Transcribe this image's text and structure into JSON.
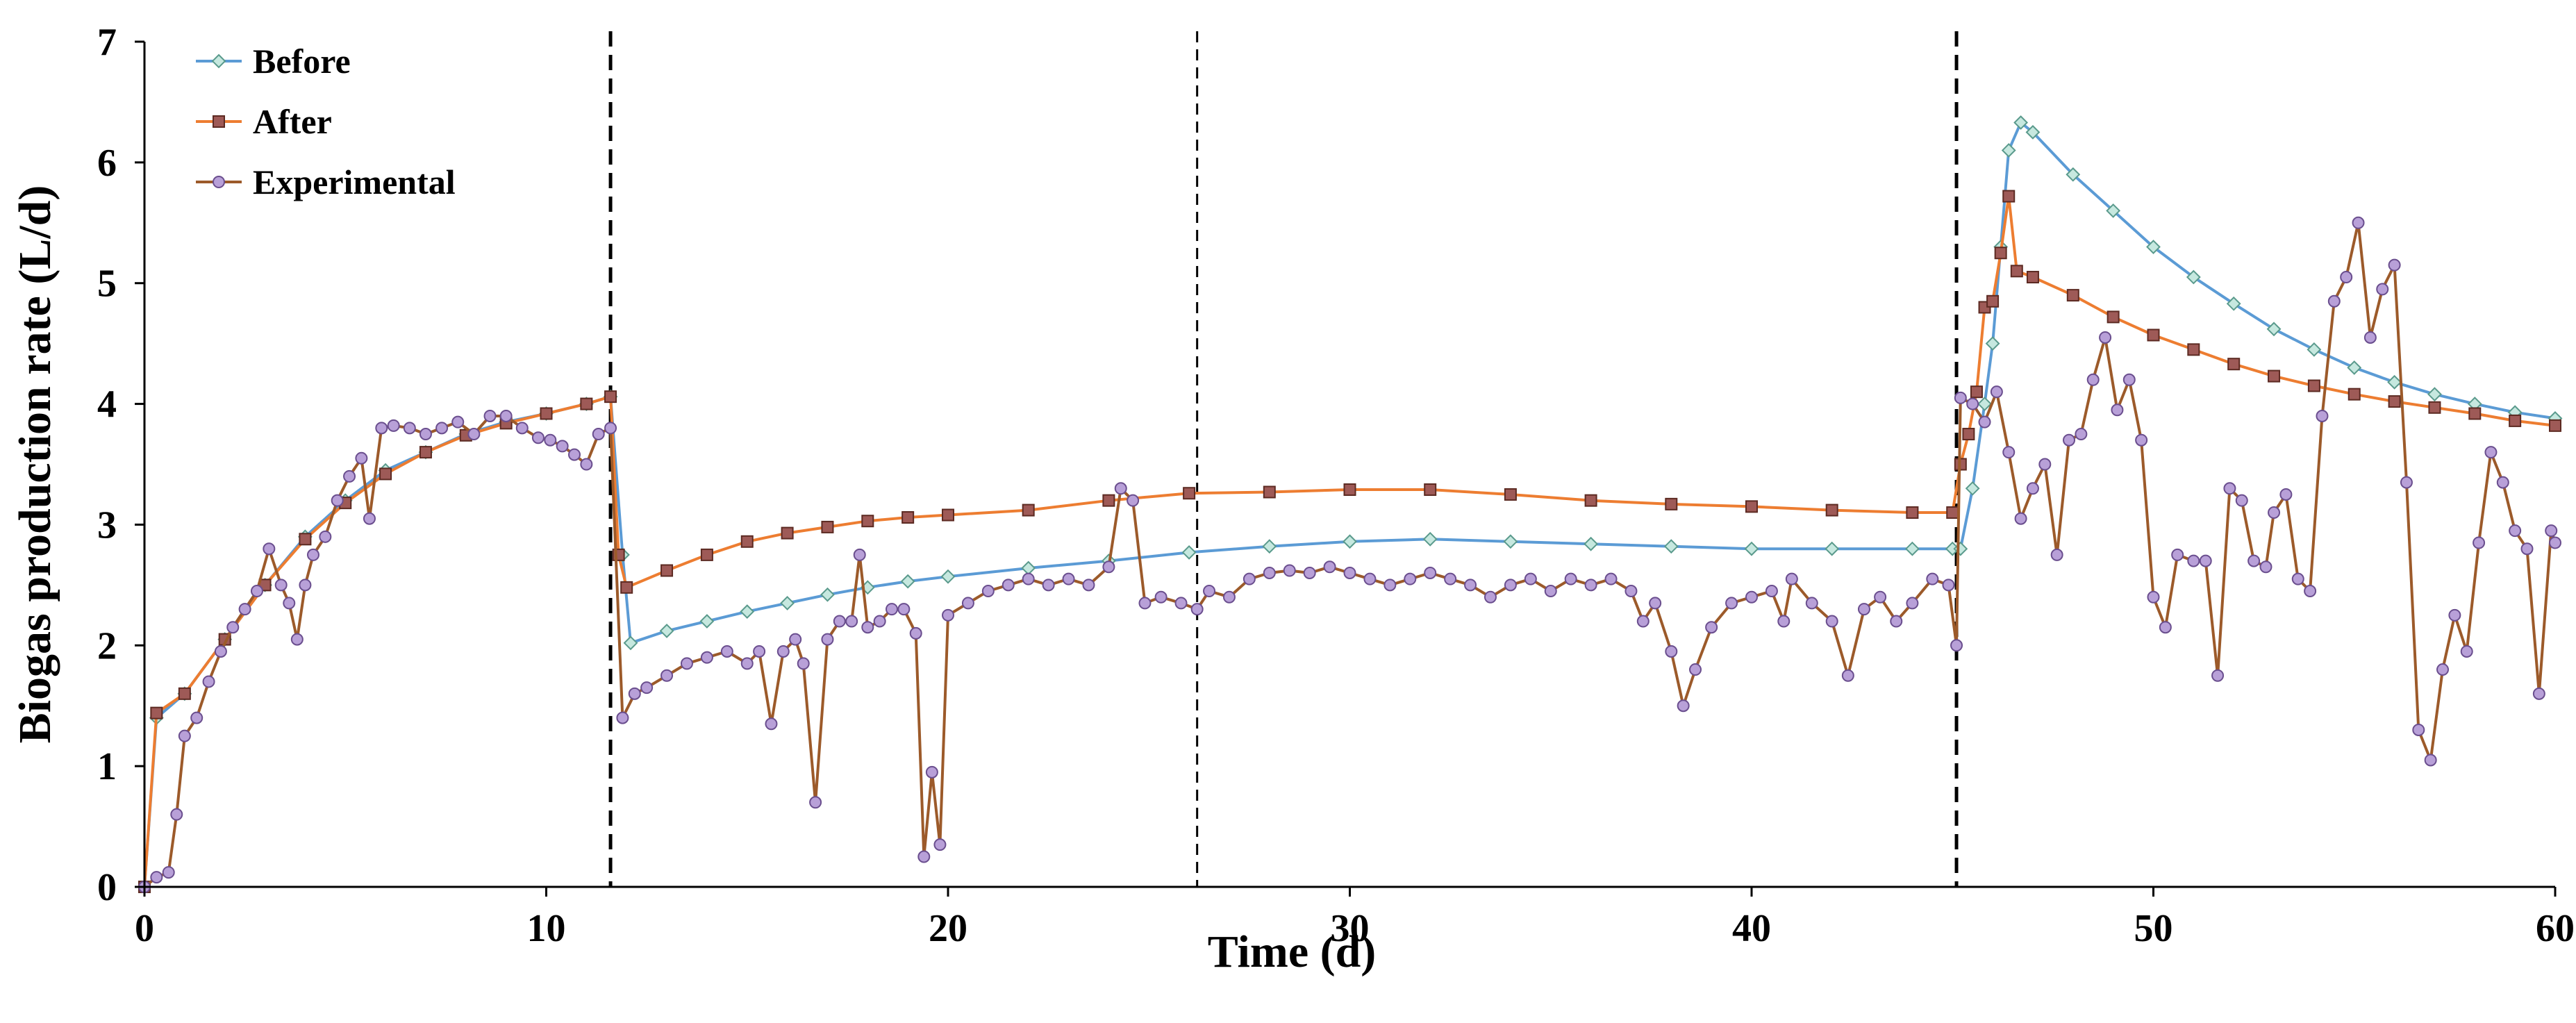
{
  "chart_data": {
    "type": "line",
    "title": "",
    "xlabel": "Time (d)",
    "ylabel": "Biogas production rate (L/d)",
    "xlim": [
      0,
      60
    ],
    "ylim": [
      0,
      7
    ],
    "xticks": [
      "0",
      "10",
      "20",
      "30",
      "40",
      "50",
      "60"
    ],
    "yticks": [
      "0",
      "1",
      "2",
      "3",
      "4",
      "5",
      "6",
      "7"
    ],
    "grid": false,
    "legend_position": "top-left",
    "vertical_reference_lines": [
      {
        "x": 11.6,
        "style": "bold-dashed"
      },
      {
        "x": 26.2,
        "style": "dashed"
      },
      {
        "x": 45.1,
        "style": "bold-dashed"
      }
    ],
    "series": [
      {
        "name": "Before",
        "line_color": "#5b9bd5",
        "marker": "diamond",
        "marker_fill": "#c6e8df",
        "marker_stroke": "#5a9a8c",
        "points": [
          [
            0,
            0
          ],
          [
            0.3,
            1.4
          ],
          [
            1,
            1.6
          ],
          [
            2,
            2.05
          ],
          [
            3,
            2.5
          ],
          [
            4,
            2.9
          ],
          [
            5,
            3.2
          ],
          [
            6,
            3.45
          ],
          [
            7,
            3.6
          ],
          [
            8,
            3.75
          ],
          [
            9,
            3.85
          ],
          [
            10,
            3.92
          ],
          [
            11,
            4.0
          ],
          [
            11.6,
            4.06
          ],
          [
            11.9,
            2.75
          ],
          [
            12.1,
            2.02
          ],
          [
            13,
            2.12
          ],
          [
            14,
            2.2
          ],
          [
            15,
            2.28
          ],
          [
            16,
            2.35
          ],
          [
            17,
            2.42
          ],
          [
            18,
            2.48
          ],
          [
            19,
            2.53
          ],
          [
            20,
            2.57
          ],
          [
            22,
            2.64
          ],
          [
            24,
            2.7
          ],
          [
            26,
            2.77
          ],
          [
            28,
            2.82
          ],
          [
            30,
            2.86
          ],
          [
            32,
            2.88
          ],
          [
            34,
            2.86
          ],
          [
            36,
            2.84
          ],
          [
            38,
            2.82
          ],
          [
            40,
            2.8
          ],
          [
            42,
            2.8
          ],
          [
            44,
            2.8
          ],
          [
            45,
            2.8
          ],
          [
            45.2,
            2.8
          ],
          [
            45.5,
            3.3
          ],
          [
            45.8,
            4.0
          ],
          [
            46.0,
            4.5
          ],
          [
            46.2,
            5.3
          ],
          [
            46.4,
            6.1
          ],
          [
            46.7,
            6.33
          ],
          [
            47,
            6.25
          ],
          [
            48,
            5.9
          ],
          [
            49,
            5.6
          ],
          [
            50,
            5.3
          ],
          [
            51,
            5.05
          ],
          [
            52,
            4.83
          ],
          [
            53,
            4.62
          ],
          [
            54,
            4.45
          ],
          [
            55,
            4.3
          ],
          [
            56,
            4.18
          ],
          [
            57,
            4.08
          ],
          [
            58,
            4.0
          ],
          [
            59,
            3.93
          ],
          [
            60,
            3.88
          ]
        ]
      },
      {
        "name": "After",
        "line_color": "#ed7d31",
        "marker": "square",
        "marker_fill": "#9e5a57",
        "marker_stroke": "#5c2a22",
        "points": [
          [
            0,
            0
          ],
          [
            0.3,
            1.44
          ],
          [
            1,
            1.6
          ],
          [
            2,
            2.05
          ],
          [
            3,
            2.5
          ],
          [
            4,
            2.88
          ],
          [
            5,
            3.18
          ],
          [
            6,
            3.42
          ],
          [
            7,
            3.6
          ],
          [
            8,
            3.74
          ],
          [
            9,
            3.84
          ],
          [
            10,
            3.92
          ],
          [
            11,
            4.0
          ],
          [
            11.6,
            4.06
          ],
          [
            11.8,
            2.75
          ],
          [
            12.0,
            2.48
          ],
          [
            13,
            2.62
          ],
          [
            14,
            2.75
          ],
          [
            15,
            2.86
          ],
          [
            16,
            2.93
          ],
          [
            17,
            2.98
          ],
          [
            18,
            3.03
          ],
          [
            19,
            3.06
          ],
          [
            20,
            3.08
          ],
          [
            22,
            3.12
          ],
          [
            24,
            3.2
          ],
          [
            26,
            3.26
          ],
          [
            28,
            3.27
          ],
          [
            30,
            3.29
          ],
          [
            32,
            3.29
          ],
          [
            34,
            3.25
          ],
          [
            36,
            3.2
          ],
          [
            38,
            3.17
          ],
          [
            40,
            3.15
          ],
          [
            42,
            3.12
          ],
          [
            44,
            3.1
          ],
          [
            45,
            3.1
          ],
          [
            45.2,
            3.5
          ],
          [
            45.4,
            3.75
          ],
          [
            45.6,
            4.1
          ],
          [
            45.8,
            4.8
          ],
          [
            46.0,
            4.85
          ],
          [
            46.2,
            5.25
          ],
          [
            46.4,
            5.72
          ],
          [
            46.6,
            5.1
          ],
          [
            47,
            5.05
          ],
          [
            48,
            4.9
          ],
          [
            49,
            4.72
          ],
          [
            50,
            4.57
          ],
          [
            51,
            4.45
          ],
          [
            52,
            4.33
          ],
          [
            53,
            4.23
          ],
          [
            54,
            4.15
          ],
          [
            55,
            4.08
          ],
          [
            56,
            4.02
          ],
          [
            57,
            3.97
          ],
          [
            58,
            3.92
          ],
          [
            59,
            3.86
          ],
          [
            60,
            3.82
          ]
        ]
      },
      {
        "name": "Experimental",
        "line_color": "#9c5a2a",
        "marker": "circle",
        "marker_fill": "#b8a0d8",
        "marker_stroke": "#6a4e8e",
        "points": [
          [
            0,
            0
          ],
          [
            0.3,
            0.08
          ],
          [
            0.6,
            0.12
          ],
          [
            0.8,
            0.6
          ],
          [
            1.0,
            1.25
          ],
          [
            1.3,
            1.4
          ],
          [
            1.6,
            1.7
          ],
          [
            1.9,
            1.95
          ],
          [
            2.2,
            2.15
          ],
          [
            2.5,
            2.3
          ],
          [
            2.8,
            2.45
          ],
          [
            3.1,
            2.8
          ],
          [
            3.4,
            2.5
          ],
          [
            3.6,
            2.35
          ],
          [
            3.8,
            2.05
          ],
          [
            4.0,
            2.5
          ],
          [
            4.2,
            2.75
          ],
          [
            4.5,
            2.9
          ],
          [
            4.8,
            3.2
          ],
          [
            5.1,
            3.4
          ],
          [
            5.4,
            3.55
          ],
          [
            5.6,
            3.05
          ],
          [
            5.9,
            3.8
          ],
          [
            6.2,
            3.82
          ],
          [
            6.6,
            3.8
          ],
          [
            7.0,
            3.75
          ],
          [
            7.4,
            3.8
          ],
          [
            7.8,
            3.85
          ],
          [
            8.2,
            3.75
          ],
          [
            8.6,
            3.9
          ],
          [
            9.0,
            3.9
          ],
          [
            9.4,
            3.8
          ],
          [
            9.8,
            3.72
          ],
          [
            10.1,
            3.7
          ],
          [
            10.4,
            3.65
          ],
          [
            10.7,
            3.58
          ],
          [
            11.0,
            3.5
          ],
          [
            11.3,
            3.75
          ],
          [
            11.6,
            3.8
          ],
          [
            11.9,
            1.4
          ],
          [
            12.2,
            1.6
          ],
          [
            12.5,
            1.65
          ],
          [
            13.0,
            1.75
          ],
          [
            13.5,
            1.85
          ],
          [
            14.0,
            1.9
          ],
          [
            14.5,
            1.95
          ],
          [
            15.0,
            1.85
          ],
          [
            15.3,
            1.95
          ],
          [
            15.6,
            1.35
          ],
          [
            15.9,
            1.95
          ],
          [
            16.2,
            2.05
          ],
          [
            16.4,
            1.85
          ],
          [
            16.7,
            0.7
          ],
          [
            17.0,
            2.05
          ],
          [
            17.3,
            2.2
          ],
          [
            17.6,
            2.2
          ],
          [
            17.8,
            2.75
          ],
          [
            18.0,
            2.15
          ],
          [
            18.3,
            2.2
          ],
          [
            18.6,
            2.3
          ],
          [
            18.9,
            2.3
          ],
          [
            19.2,
            2.1
          ],
          [
            19.4,
            0.25
          ],
          [
            19.6,
            0.95
          ],
          [
            19.8,
            0.35
          ],
          [
            20.0,
            2.25
          ],
          [
            20.5,
            2.35
          ],
          [
            21.0,
            2.45
          ],
          [
            21.5,
            2.5
          ],
          [
            22.0,
            2.55
          ],
          [
            22.5,
            2.5
          ],
          [
            23.0,
            2.55
          ],
          [
            23.5,
            2.5
          ],
          [
            24.0,
            2.65
          ],
          [
            24.3,
            3.3
          ],
          [
            24.6,
            3.2
          ],
          [
            24.9,
            2.35
          ],
          [
            25.3,
            2.4
          ],
          [
            25.8,
            2.35
          ],
          [
            26.2,
            2.3
          ],
          [
            26.5,
            2.45
          ],
          [
            27.0,
            2.4
          ],
          [
            27.5,
            2.55
          ],
          [
            28.0,
            2.6
          ],
          [
            28.5,
            2.62
          ],
          [
            29.0,
            2.6
          ],
          [
            29.5,
            2.65
          ],
          [
            30.0,
            2.6
          ],
          [
            30.5,
            2.55
          ],
          [
            31.0,
            2.5
          ],
          [
            31.5,
            2.55
          ],
          [
            32.0,
            2.6
          ],
          [
            32.5,
            2.55
          ],
          [
            33.0,
            2.5
          ],
          [
            33.5,
            2.4
          ],
          [
            34.0,
            2.5
          ],
          [
            34.5,
            2.55
          ],
          [
            35.0,
            2.45
          ],
          [
            35.5,
            2.55
          ],
          [
            36.0,
            2.5
          ],
          [
            36.5,
            2.55
          ],
          [
            37.0,
            2.45
          ],
          [
            37.3,
            2.2
          ],
          [
            37.6,
            2.35
          ],
          [
            38.0,
            1.95
          ],
          [
            38.3,
            1.5
          ],
          [
            38.6,
            1.8
          ],
          [
            39.0,
            2.15
          ],
          [
            39.5,
            2.35
          ],
          [
            40.0,
            2.4
          ],
          [
            40.5,
            2.45
          ],
          [
            40.8,
            2.2
          ],
          [
            41.0,
            2.55
          ],
          [
            41.5,
            2.35
          ],
          [
            42.0,
            2.2
          ],
          [
            42.4,
            1.75
          ],
          [
            42.8,
            2.3
          ],
          [
            43.2,
            2.4
          ],
          [
            43.6,
            2.2
          ],
          [
            44.0,
            2.35
          ],
          [
            44.5,
            2.55
          ],
          [
            44.9,
            2.5
          ],
          [
            45.1,
            2.0
          ],
          [
            45.2,
            4.05
          ],
          [
            45.5,
            4.0
          ],
          [
            45.8,
            3.85
          ],
          [
            46.1,
            4.1
          ],
          [
            46.4,
            3.6
          ],
          [
            46.7,
            3.05
          ],
          [
            47.0,
            3.3
          ],
          [
            47.3,
            3.5
          ],
          [
            47.6,
            2.75
          ],
          [
            47.9,
            3.7
          ],
          [
            48.2,
            3.75
          ],
          [
            48.5,
            4.2
          ],
          [
            48.8,
            4.55
          ],
          [
            49.1,
            3.95
          ],
          [
            49.4,
            4.2
          ],
          [
            49.7,
            3.7
          ],
          [
            50.0,
            2.4
          ],
          [
            50.3,
            2.15
          ],
          [
            50.6,
            2.75
          ],
          [
            51.0,
            2.7
          ],
          [
            51.3,
            2.7
          ],
          [
            51.6,
            1.75
          ],
          [
            51.9,
            3.3
          ],
          [
            52.2,
            3.2
          ],
          [
            52.5,
            2.7
          ],
          [
            52.8,
            2.65
          ],
          [
            53.0,
            3.1
          ],
          [
            53.3,
            3.25
          ],
          [
            53.6,
            2.55
          ],
          [
            53.9,
            2.45
          ],
          [
            54.2,
            3.9
          ],
          [
            54.5,
            4.85
          ],
          [
            54.8,
            5.05
          ],
          [
            55.1,
            5.5
          ],
          [
            55.4,
            4.55
          ],
          [
            55.7,
            4.95
          ],
          [
            56.0,
            5.15
          ],
          [
            56.3,
            3.35
          ],
          [
            56.6,
            1.3
          ],
          [
            56.9,
            1.05
          ],
          [
            57.2,
            1.8
          ],
          [
            57.5,
            2.25
          ],
          [
            57.8,
            1.95
          ],
          [
            58.1,
            2.85
          ],
          [
            58.4,
            3.6
          ],
          [
            58.7,
            3.35
          ],
          [
            59.0,
            2.95
          ],
          [
            59.3,
            2.8
          ],
          [
            59.6,
            1.6
          ],
          [
            59.9,
            2.95
          ],
          [
            60.0,
            2.85
          ]
        ]
      }
    ]
  }
}
